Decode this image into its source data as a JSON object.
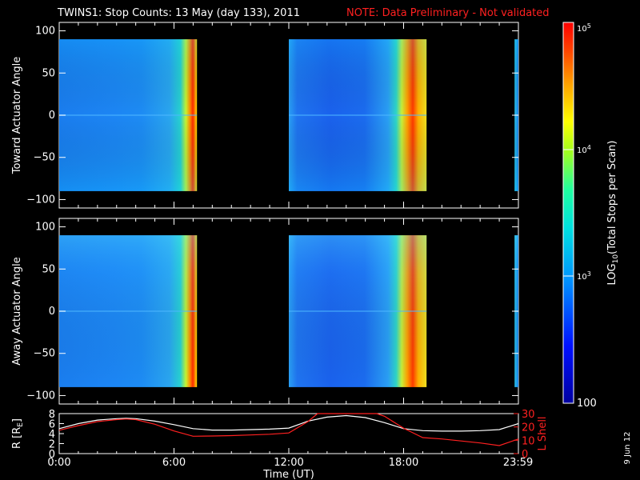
{
  "chart_data": [
    {
      "type": "heatmap",
      "title": "TWINS1: Stop Counts: 13 May (day 133), 2011",
      "note": "NOTE: Data Preliminary - Not validated",
      "ylabel": "Toward Actuator Angle",
      "ylim": [
        -110,
        110
      ],
      "yticks": [
        "100",
        "50",
        "0",
        "−50",
        "−100"
      ],
      "ytick_values": [
        100,
        50,
        0,
        -50,
        -100
      ],
      "x_range_hours": [
        0,
        24
      ],
      "data_segments_hours": [
        [
          0.0,
          7.2
        ],
        [
          12.0,
          19.2
        ],
        [
          23.8,
          24.0
        ]
      ],
      "angle_range": [
        -90,
        90
      ]
    },
    {
      "type": "heatmap",
      "ylabel": "Away Actuator Angle",
      "ylim": [
        -110,
        110
      ],
      "yticks": [
        "100",
        "50",
        "0",
        "−50",
        "−100"
      ],
      "ytick_values": [
        100,
        50,
        0,
        -50,
        -100
      ],
      "x_range_hours": [
        0,
        24
      ],
      "data_segments_hours": [
        [
          0.0,
          7.2
        ],
        [
          12.0,
          19.2
        ],
        [
          23.8,
          24.0
        ]
      ],
      "angle_range": [
        -90,
        90
      ]
    },
    {
      "type": "line",
      "ylabel_left": "R [R",
      "ylabel_left_sub": "E",
      "ylabel_left_end": "]",
      "ylabel_right": "L Shell",
      "ylim_left": [
        0,
        8
      ],
      "ylim_right": [
        0,
        30
      ],
      "yticks_left": [
        "0",
        "2",
        "4",
        "6",
        "8"
      ],
      "yticks_right": [
        "0",
        "10",
        "20",
        "30"
      ],
      "xlabel": "Time (UT)",
      "xticks": [
        "0:00",
        "6:00",
        "12:00",
        "18:00",
        "23:59"
      ],
      "xtick_hours": [
        0,
        6,
        12,
        18,
        23.983
      ],
      "series": [
        {
          "name": "R",
          "color": "#ffffff",
          "x": [
            0,
            1,
            2,
            3,
            3.5,
            4,
            5,
            6,
            7,
            8,
            9,
            10,
            11,
            12,
            13,
            14,
            15,
            16,
            17,
            18,
            19,
            20,
            21,
            22,
            23,
            24
          ],
          "y": [
            5.0,
            6.0,
            6.7,
            7.0,
            7.05,
            7.0,
            6.5,
            5.8,
            5.0,
            4.7,
            4.7,
            4.8,
            4.9,
            5.1,
            6.5,
            7.3,
            7.6,
            7.2,
            6.2,
            5.0,
            4.6,
            4.5,
            4.5,
            4.6,
            4.8,
            6.0
          ]
        },
        {
          "name": "L Shell",
          "color": "#ff2020",
          "axis": "right",
          "x": [
            0,
            1,
            2,
            3,
            3.5,
            4,
            5,
            6,
            7,
            8,
            9,
            10,
            11,
            12,
            13,
            13.5,
            16.6,
            17,
            18,
            19,
            20,
            21,
            22,
            23,
            24
          ],
          "y": [
            17.5,
            21,
            24,
            25.5,
            26,
            25.5,
            22,
            17,
            13,
            13.2,
            13.5,
            14,
            14.5,
            15.5,
            24,
            31,
            31,
            28,
            19,
            12,
            11,
            9.5,
            8,
            6,
            11
          ]
        }
      ]
    },
    {
      "type": "colorbar",
      "scale": "log",
      "range": [
        100,
        100000
      ],
      "label_top": "10",
      "label_top_exp": "5",
      "label_mid": "10",
      "label_mid_exp": "4",
      "label_low": "10",
      "label_low_exp": "3",
      "label_bottom": "100",
      "title_prefix": "LOG",
      "title_sub": "10",
      "title_suffix": "(Total Stops per Scan)"
    }
  ],
  "footer": {
    "date_stamp": "9 Jun 12"
  }
}
